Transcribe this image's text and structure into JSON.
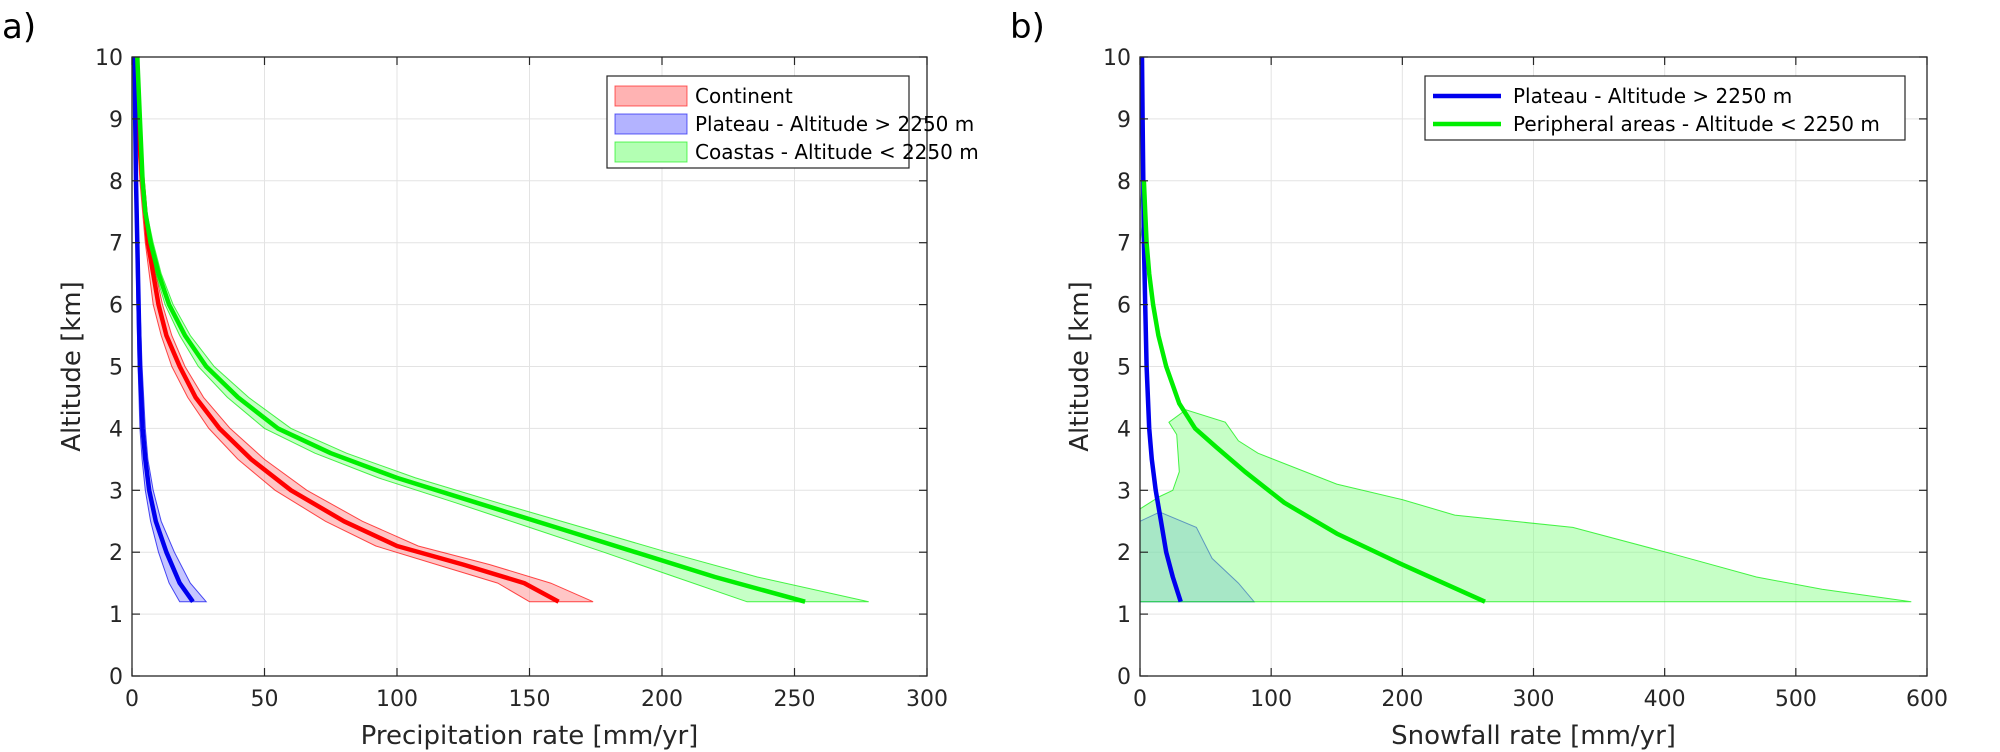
{
  "chart_data": [
    {
      "panel": "a)",
      "type": "line",
      "xlabel": "Precipitation rate [mm/yr]",
      "ylabel": "Altitude [km]",
      "xlim": [
        0,
        300
      ],
      "ylim": [
        0,
        10
      ],
      "xticks": [
        0,
        50,
        100,
        150,
        200,
        250,
        300
      ],
      "yticks": [
        0,
        1,
        2,
        3,
        4,
        5,
        6,
        7,
        8,
        9,
        10
      ],
      "grid": true,
      "legend": {
        "placement": "top-right",
        "entries": [
          "Continent",
          "Plateau - Altitude > 2250 m",
          "Coastas - Altitude < 2250 m"
        ]
      },
      "series": [
        {
          "name": "Continent",
          "color": "#ff0000",
          "fill": "#ff8080",
          "points": [
            [
              161,
              1.2
            ],
            [
              148,
              1.5
            ],
            [
              125,
              1.8
            ],
            [
              100,
              2.1
            ],
            [
              80,
              2.5
            ],
            [
              60,
              3.0
            ],
            [
              45,
              3.5
            ],
            [
              33,
              4.0
            ],
            [
              24,
              4.5
            ],
            [
              18,
              5.0
            ],
            [
              13,
              5.5
            ],
            [
              10,
              6.0
            ],
            [
              8,
              6.5
            ],
            [
              6,
              7.0
            ],
            [
              5,
              7.5
            ],
            [
              4,
              8.0
            ],
            [
              3,
              8.5
            ],
            [
              2.5,
              9.0
            ],
            [
              2,
              9.5
            ],
            [
              2,
              10.0
            ]
          ],
          "lower": [
            [
              150,
              1.2
            ],
            [
              138,
              1.5
            ],
            [
              115,
              1.8
            ],
            [
              92,
              2.1
            ],
            [
              73,
              2.5
            ],
            [
              54,
              3.0
            ],
            [
              40,
              3.5
            ],
            [
              29,
              4.0
            ],
            [
              21,
              4.5
            ],
            [
              15,
              5.0
            ],
            [
              11,
              5.5
            ],
            [
              8,
              6.0
            ],
            [
              6.5,
              6.5
            ],
            [
              5,
              7.0
            ],
            [
              4,
              7.5
            ],
            [
              3,
              8.0
            ],
            [
              2.3,
              8.5
            ],
            [
              2,
              9.0
            ],
            [
              1.5,
              9.5
            ],
            [
              1.5,
              10.0
            ]
          ],
          "upper": [
            [
              174,
              1.2
            ],
            [
              158,
              1.5
            ],
            [
              135,
              1.8
            ],
            [
              108,
              2.1
            ],
            [
              87,
              2.5
            ],
            [
              66,
              3.0
            ],
            [
              50,
              3.5
            ],
            [
              37,
              4.0
            ],
            [
              27,
              4.5
            ],
            [
              20,
              5.0
            ],
            [
              15,
              5.5
            ],
            [
              11.5,
              6.0
            ],
            [
              9,
              6.5
            ],
            [
              7,
              7.0
            ],
            [
              5.5,
              7.5
            ],
            [
              4.5,
              8.0
            ],
            [
              3.5,
              8.5
            ],
            [
              3,
              9.0
            ],
            [
              2.5,
              9.5
            ],
            [
              2.5,
              10.0
            ]
          ]
        },
        {
          "name": "Plateau - Altitude > 2250 m",
          "color": "#0000ee",
          "fill": "#8080ff",
          "points": [
            [
              23,
              1.2
            ],
            [
              18,
              1.5
            ],
            [
              13,
              2.0
            ],
            [
              9,
              2.5
            ],
            [
              6.5,
              3.0
            ],
            [
              5,
              3.5
            ],
            [
              4,
              4.0
            ],
            [
              3,
              5.0
            ],
            [
              2.5,
              6.0
            ],
            [
              2,
              7.0
            ],
            [
              1.5,
              8.0
            ],
            [
              1.2,
              9.0
            ],
            [
              1,
              10.0
            ]
          ],
          "lower": [
            [
              18,
              1.2
            ],
            [
              14,
              1.5
            ],
            [
              10,
              2.0
            ],
            [
              7,
              2.5
            ],
            [
              5,
              3.0
            ],
            [
              3.8,
              3.5
            ],
            [
              3,
              4.0
            ],
            [
              2.3,
              5.0
            ],
            [
              1.8,
              6.0
            ],
            [
              1.5,
              7.0
            ],
            [
              1.2,
              8.0
            ],
            [
              1,
              9.0
            ],
            [
              0.8,
              10.0
            ]
          ],
          "upper": [
            [
              28,
              1.2
            ],
            [
              22,
              1.5
            ],
            [
              16,
              2.0
            ],
            [
              11,
              2.5
            ],
            [
              8,
              3.0
            ],
            [
              6,
              3.5
            ],
            [
              5,
              4.0
            ],
            [
              3.8,
              5.0
            ],
            [
              3,
              6.0
            ],
            [
              2.5,
              7.0
            ],
            [
              2,
              8.0
            ],
            [
              1.5,
              9.0
            ],
            [
              1.2,
              10.0
            ]
          ]
        },
        {
          "name": "Coastas - Altitude < 2250 m",
          "color": "#00ee00",
          "fill": "#80ff80",
          "points": [
            [
              254,
              1.2
            ],
            [
              220,
              1.6
            ],
            [
              190,
              2.0
            ],
            [
              160,
              2.4
            ],
            [
              130,
              2.8
            ],
            [
              100,
              3.2
            ],
            [
              75,
              3.6
            ],
            [
              55,
              4.0
            ],
            [
              40,
              4.5
            ],
            [
              28,
              5.0
            ],
            [
              20,
              5.5
            ],
            [
              14,
              6.0
            ],
            [
              10,
              6.5
            ],
            [
              7,
              7.0
            ],
            [
              5,
              7.5
            ],
            [
              4,
              8.0
            ],
            [
              3,
              9.0
            ],
            [
              2,
              10.0
            ]
          ],
          "lower": [
            [
              232,
              1.2
            ],
            [
              205,
              1.6
            ],
            [
              178,
              2.0
            ],
            [
              150,
              2.4
            ],
            [
              122,
              2.8
            ],
            [
              93,
              3.2
            ],
            [
              69,
              3.6
            ],
            [
              50,
              4.0
            ],
            [
              36,
              4.5
            ],
            [
              25,
              5.0
            ],
            [
              18,
              5.5
            ],
            [
              12.5,
              6.0
            ],
            [
              9,
              6.5
            ],
            [
              6.5,
              7.0
            ],
            [
              4.5,
              7.5
            ],
            [
              3.5,
              8.0
            ],
            [
              2.5,
              9.0
            ],
            [
              1.8,
              10.0
            ]
          ],
          "upper": [
            [
              278,
              1.2
            ],
            [
              236,
              1.6
            ],
            [
              202,
              2.0
            ],
            [
              170,
              2.4
            ],
            [
              138,
              2.8
            ],
            [
              107,
              3.2
            ],
            [
              81,
              3.6
            ],
            [
              60,
              4.0
            ],
            [
              44,
              4.5
            ],
            [
              31,
              5.0
            ],
            [
              22,
              5.5
            ],
            [
              15.5,
              6.0
            ],
            [
              11,
              6.5
            ],
            [
              8,
              7.0
            ],
            [
              5.5,
              7.5
            ],
            [
              4.5,
              8.0
            ],
            [
              3.5,
              9.0
            ],
            [
              2.2,
              10.0
            ]
          ]
        }
      ]
    },
    {
      "panel": "b)",
      "type": "line",
      "xlabel": "Snowfall rate [mm/yr]",
      "ylabel": "Altitude [km]",
      "xlim": [
        0,
        600
      ],
      "ylim": [
        0,
        10
      ],
      "xticks": [
        0,
        100,
        200,
        300,
        400,
        500,
        600
      ],
      "yticks": [
        0,
        1,
        2,
        3,
        4,
        5,
        6,
        7,
        8,
        9,
        10
      ],
      "grid": true,
      "legend": {
        "placement": "top-right",
        "entries": [
          "Plateau - Altitude > 2250 m",
          "Peripheral areas - Altitude < 2250 m"
        ]
      },
      "series": [
        {
          "name": "Plateau - Altitude > 2250 m",
          "color": "#0000ee",
          "fill": "#80a0ff",
          "points": [
            [
              31,
              1.2
            ],
            [
              25,
              1.6
            ],
            [
              20,
              2.0
            ],
            [
              16,
              2.5
            ],
            [
              12,
              3.0
            ],
            [
              9,
              3.5
            ],
            [
              7,
              4.0
            ],
            [
              5,
              5.0
            ],
            [
              4,
              6.0
            ],
            [
              3,
              7.0
            ],
            [
              2.5,
              8.0
            ],
            [
              2,
              9.0
            ],
            [
              1.5,
              10.0
            ]
          ],
          "spread": [
            [
              0,
              1.2
            ],
            [
              87,
              1.2
            ],
            [
              75,
              1.5
            ],
            [
              55,
              1.9
            ],
            [
              43,
              2.4
            ],
            [
              15,
              2.65
            ],
            [
              0,
              2.5
            ]
          ]
        },
        {
          "name": "Peripheral areas - Altitude < 2250 m",
          "color": "#00ee00",
          "fill": "#80ff80",
          "points": [
            [
              263,
              1.2
            ],
            [
              200,
              1.8
            ],
            [
              150,
              2.3
            ],
            [
              110,
              2.8
            ],
            [
              80,
              3.3
            ],
            [
              58,
              3.7
            ],
            [
              42,
              4.0
            ],
            [
              30,
              4.4
            ],
            [
              20,
              5.0
            ],
            [
              14,
              5.5
            ],
            [
              10,
              6.0
            ],
            [
              7,
              6.5
            ],
            [
              5,
              7.0
            ],
            [
              4,
              7.5
            ],
            [
              3,
              8.0
            ]
          ],
          "spread": [
            [
              0,
              1.2
            ],
            [
              588,
              1.2
            ],
            [
              520,
              1.4
            ],
            [
              470,
              1.6
            ],
            [
              410,
              1.95
            ],
            [
              330,
              2.4
            ],
            [
              240,
              2.6
            ],
            [
              200,
              2.85
            ],
            [
              150,
              3.1
            ],
            [
              90,
              3.6
            ],
            [
              75,
              3.8
            ],
            [
              65,
              4.1
            ],
            [
              35,
              4.3
            ],
            [
              22,
              4.1
            ],
            [
              28,
              3.9
            ],
            [
              30,
              3.3
            ],
            [
              25,
              3.0
            ],
            [
              15,
              2.9
            ],
            [
              0,
              2.7
            ],
            [
              0,
              7.0
            ],
            [
              3,
              7.5
            ],
            [
              3,
              8.0
            ],
            [
              2,
              8.0
            ],
            [
              0,
              7.5
            ]
          ]
        }
      ]
    }
  ]
}
